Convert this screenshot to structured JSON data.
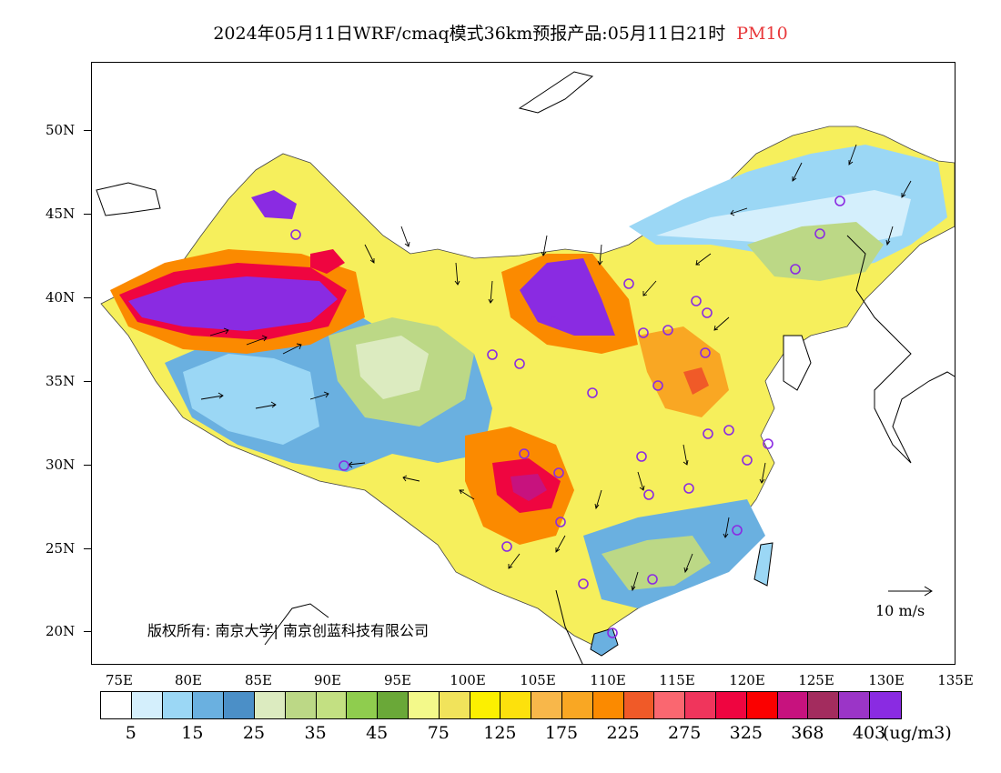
{
  "title": {
    "main": "2024年05月11日WRF/cmaq模式36km预报产品:05月11日21时",
    "product": "PM10"
  },
  "copyright": "版权所有: 南京大学| 南京创蓝科技有限公司",
  "reference_vector": {
    "label": "10 m/s"
  },
  "axes": {
    "lat_labels": [
      "50N",
      "45N",
      "40N",
      "35N",
      "30N",
      "25N",
      "20N"
    ],
    "lon_labels": [
      "75E",
      "80E",
      "85E",
      "90E",
      "95E",
      "100E",
      "105E",
      "110E",
      "115E",
      "120E",
      "125E",
      "130E",
      "135E"
    ]
  },
  "colorbar": {
    "colors": [
      "#ffffff",
      "#d4effc",
      "#9bd7f5",
      "#6ab0e0",
      "#4b8fc7",
      "#dcebc0",
      "#bcd886",
      "#c3e082",
      "#8fcd4e",
      "#6aa838",
      "#f3f98a",
      "#f1e35b",
      "#fcf000",
      "#fde10c",
      "#f8b74a",
      "#f9a723",
      "#fb8a00",
      "#f05a28",
      "#fa6770",
      "#f0355c",
      "#ef0540",
      "#fb0000",
      "#c7127e",
      "#a32c5e",
      "#9b35c7",
      "#8a2be2"
    ],
    "labels": [
      "5",
      "15",
      "25",
      "35",
      "45",
      "75",
      "125",
      "175",
      "225",
      "275",
      "325",
      "368",
      "403"
    ],
    "unit": "(ug/m3)"
  }
}
